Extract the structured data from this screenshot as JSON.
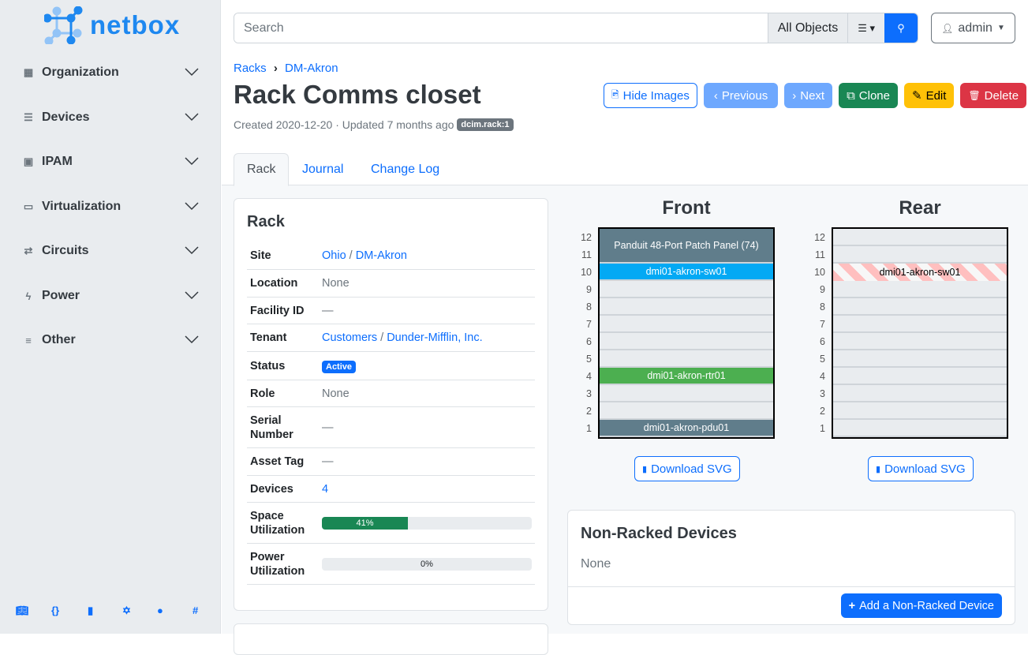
{
  "brand": {
    "name": "netbox"
  },
  "sidebar": {
    "items": [
      {
        "label": "Organization",
        "icon": "domain-icon"
      },
      {
        "label": "Devices",
        "icon": "server-icon"
      },
      {
        "label": "IPAM",
        "icon": "ip-icon"
      },
      {
        "label": "Virtualization",
        "icon": "monitor-icon"
      },
      {
        "label": "Circuits",
        "icon": "transit-icon"
      },
      {
        "label": "Power",
        "icon": "flash-icon"
      },
      {
        "label": "Other",
        "icon": "notes-icon"
      }
    ],
    "footer": [
      "book-icon",
      "api-icon",
      "docs-icon",
      "graphql-icon",
      "github-icon",
      "slack-icon"
    ]
  },
  "search": {
    "placeholder": "Search",
    "scope": "All Objects"
  },
  "user": {
    "name": "admin"
  },
  "breadcrumb": [
    "Racks",
    "DM-Akron"
  ],
  "page": {
    "title": "Rack Comms closet",
    "meta": "Created 2020-12-20 · Updated 7 months ago",
    "tag": "dcim.rack:1"
  },
  "actions": {
    "hide_images": "Hide Images",
    "previous": "Previous",
    "next": "Next",
    "clone": "Clone",
    "edit": "Edit",
    "delete": "Delete"
  },
  "tabs": [
    "Rack",
    "Journal",
    "Change Log"
  ],
  "rack_card": {
    "title": "Rack",
    "rows": {
      "site": {
        "label": "Site",
        "region": "Ohio",
        "site": "DM-Akron"
      },
      "location": {
        "label": "Location",
        "value": "None"
      },
      "facility": {
        "label": "Facility ID",
        "value": "—"
      },
      "tenant": {
        "label": "Tenant",
        "group": "Customers",
        "tenant": "Dunder-Mifflin, Inc."
      },
      "status": {
        "label": "Status",
        "value": "Active"
      },
      "role": {
        "label": "Role",
        "value": "None"
      },
      "serial": {
        "label": "Serial Number",
        "value": "—"
      },
      "asset": {
        "label": "Asset Tag",
        "value": "—"
      },
      "devices": {
        "label": "Devices",
        "value": "4"
      },
      "space": {
        "label": "Space Utilization",
        "value": "41%",
        "percent": 41
      },
      "power": {
        "label": "Power Utilization",
        "value": "0%",
        "percent": 0
      }
    }
  },
  "elevation": {
    "front": {
      "title": "Front",
      "devices": [
        {
          "name": "Panduit 48-Port Patch Panel (74)",
          "top": 12,
          "height": 2,
          "color": "#607d8b"
        },
        {
          "name": "dmi01-akron-sw01",
          "top": 10,
          "height": 1,
          "color": "#03a9f4"
        },
        {
          "name": "dmi01-akron-rtr01",
          "top": 4,
          "height": 1,
          "color": "#4caf50"
        },
        {
          "name": "dmi01-akron-pdu01",
          "top": 1,
          "height": 1,
          "color": "#607d8b"
        }
      ]
    },
    "rear": {
      "title": "Rear",
      "devices": [
        {
          "name": "dmi01-akron-sw01",
          "top": 10,
          "height": 1,
          "color": "hatched"
        }
      ]
    },
    "units": 12,
    "download": "Download SVG"
  },
  "non_racked": {
    "title": "Non-Racked Devices",
    "value": "None",
    "add": "Add a Non-Racked Device"
  }
}
